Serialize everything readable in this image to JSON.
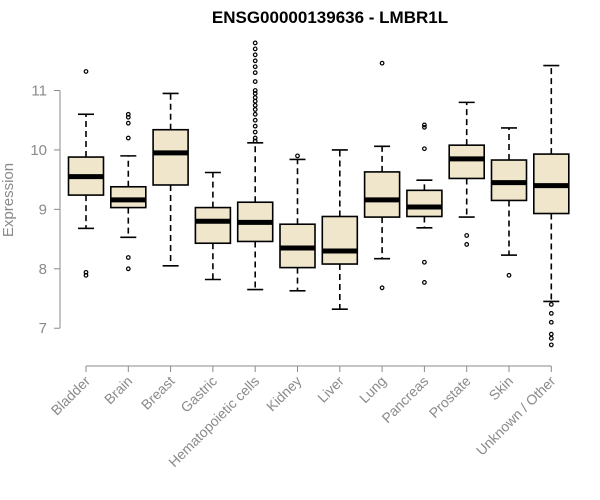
{
  "chart_data": {
    "type": "boxplot",
    "title": "ENSG00000139636 - LMBR1L",
    "xlabel": "",
    "ylabel": "Expression",
    "ylim": [
      6.6,
      11.9
    ],
    "yticks": [
      7,
      8,
      9,
      10,
      11
    ],
    "box_fill": "#efe6cc",
    "box_stroke": "#000000",
    "categories": [
      "Bladder",
      "Brain",
      "Breast",
      "Gastric",
      "Hematopoietic cells",
      "Kidney",
      "Liver",
      "Lung",
      "Pancreas",
      "Prostate",
      "Skin",
      "Unknown / Other"
    ],
    "series": [
      {
        "name": "Bladder",
        "whisker_low": 8.68,
        "q1": 9.24,
        "median": 9.55,
        "q3": 9.88,
        "whisker_high": 10.6,
        "outliers": [
          7.89,
          7.94,
          11.32
        ]
      },
      {
        "name": "Brain",
        "whisker_low": 8.53,
        "q1": 9.03,
        "median": 9.16,
        "q3": 9.38,
        "whisker_high": 9.9,
        "outliers": [
          8.0,
          8.19,
          10.2,
          10.45,
          10.55,
          10.6
        ]
      },
      {
        "name": "Breast",
        "whisker_low": 8.05,
        "q1": 9.41,
        "median": 9.95,
        "q3": 10.34,
        "whisker_high": 10.95,
        "outliers": []
      },
      {
        "name": "Gastric",
        "whisker_low": 7.82,
        "q1": 8.43,
        "median": 8.8,
        "q3": 9.03,
        "whisker_high": 9.62,
        "outliers": []
      },
      {
        "name": "Hematopoietic cells",
        "whisker_low": 7.65,
        "q1": 8.46,
        "median": 8.78,
        "q3": 9.12,
        "whisker_high": 10.12,
        "outliers": [
          10.15,
          10.2,
          10.3,
          10.4,
          10.5,
          10.6,
          10.68,
          10.75,
          10.82,
          10.88,
          10.95,
          11.0,
          11.15,
          11.3,
          11.4,
          11.5,
          11.6,
          11.7,
          11.8
        ]
      },
      {
        "name": "Kidney",
        "whisker_low": 7.63,
        "q1": 8.02,
        "median": 8.35,
        "q3": 8.75,
        "whisker_high": 9.84,
        "outliers": [
          9.9
        ]
      },
      {
        "name": "Liver",
        "whisker_low": 7.32,
        "q1": 8.08,
        "median": 8.3,
        "q3": 8.88,
        "whisker_high": 10.0,
        "outliers": []
      },
      {
        "name": "Lung",
        "whisker_low": 8.17,
        "q1": 8.87,
        "median": 9.16,
        "q3": 9.63,
        "whisker_high": 10.06,
        "outliers": [
          7.68,
          11.46
        ]
      },
      {
        "name": "Pancreas",
        "whisker_low": 8.69,
        "q1": 8.88,
        "median": 9.04,
        "q3": 9.32,
        "whisker_high": 9.49,
        "outliers": [
          7.77,
          8.11,
          10.02,
          10.38,
          10.42
        ]
      },
      {
        "name": "Prostate",
        "whisker_low": 8.87,
        "q1": 9.52,
        "median": 9.85,
        "q3": 10.08,
        "whisker_high": 10.8,
        "outliers": [
          8.41,
          8.56
        ]
      },
      {
        "name": "Skin",
        "whisker_low": 8.23,
        "q1": 9.15,
        "median": 9.45,
        "q3": 9.83,
        "whisker_high": 10.37,
        "outliers": [
          7.89
        ]
      },
      {
        "name": "Unknown / Other",
        "whisker_low": 7.45,
        "q1": 8.93,
        "median": 9.4,
        "q3": 9.93,
        "whisker_high": 11.42,
        "outliers": [
          6.72,
          6.83,
          6.9,
          7.1,
          7.25,
          7.4
        ]
      }
    ]
  }
}
